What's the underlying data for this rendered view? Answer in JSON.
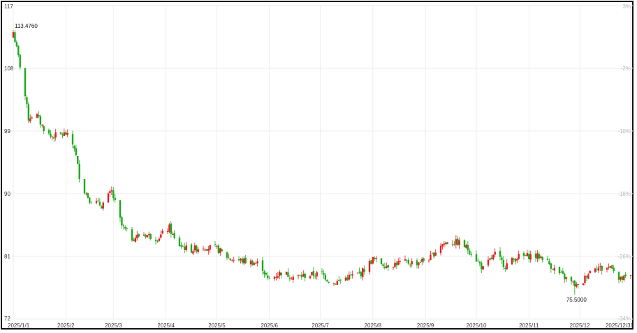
{
  "chart_data": {
    "type": "candlestick",
    "y_left_ticks": [
      "117",
      "108",
      "99",
      "90",
      "81",
      "72"
    ],
    "y_left_values": [
      117,
      108,
      99,
      90,
      81,
      72
    ],
    "ylim": [
      72,
      117
    ],
    "y_right_ticks": [
      "3%",
      "-2%",
      "-10%",
      "-18%",
      "-26%",
      "-34%"
    ],
    "x_ticks": [
      "2025/1/1",
      "2025/2",
      "2025/3",
      "2025/4",
      "2025/5",
      "2025/6",
      "2025/7",
      "2025/8",
      "2025/9",
      "2025/10",
      "2025/11",
      "2025/12",
      "2025/12/31"
    ],
    "x_tick_days": [
      0,
      31,
      59,
      90,
      120,
      151,
      181,
      212,
      243,
      273,
      304,
      334,
      364
    ],
    "high_label": "113.4760",
    "low_label": "75.5000",
    "colors": {
      "up": "#e02020",
      "down": "#1aaa1a",
      "grid": "#eeeeee"
    },
    "price_path_anchors": [
      [
        0,
        113.2
      ],
      [
        5,
        107.2
      ],
      [
        9,
        100.8
      ],
      [
        13,
        101.6
      ],
      [
        17,
        99.7
      ],
      [
        22,
        98.2
      ],
      [
        31,
        98.6
      ],
      [
        36,
        96.7
      ],
      [
        40,
        91.2
      ],
      [
        45,
        89.2
      ],
      [
        52,
        88.3
      ],
      [
        58,
        90.3
      ],
      [
        64,
        85.4
      ],
      [
        70,
        83.6
      ],
      [
        77,
        84.2
      ],
      [
        85,
        83.6
      ],
      [
        92,
        85.1
      ],
      [
        96,
        82.9
      ],
      [
        104,
        81.9
      ],
      [
        112,
        82.4
      ],
      [
        120,
        82.1
      ],
      [
        128,
        80.6
      ],
      [
        137,
        80.3
      ],
      [
        146,
        79.9
      ],
      [
        150,
        77.6
      ],
      [
        158,
        78.7
      ],
      [
        166,
        78.0
      ],
      [
        174,
        78.3
      ],
      [
        182,
        78.5
      ],
      [
        188,
        77.1
      ],
      [
        196,
        77.9
      ],
      [
        205,
        78.6
      ],
      [
        212,
        80.6
      ],
      [
        220,
        79.7
      ],
      [
        228,
        80.1
      ],
      [
        238,
        80.1
      ],
      [
        246,
        80.8
      ],
      [
        252,
        82.7
      ],
      [
        257,
        83.1
      ],
      [
        264,
        82.9
      ],
      [
        270,
        81.6
      ],
      [
        277,
        79.2
      ],
      [
        284,
        81.3
      ],
      [
        290,
        79.7
      ],
      [
        297,
        80.9
      ],
      [
        305,
        81.1
      ],
      [
        312,
        80.9
      ],
      [
        320,
        78.9
      ],
      [
        327,
        77.6
      ],
      [
        334,
        76.4
      ],
      [
        338,
        78.4
      ],
      [
        343,
        79.6
      ],
      [
        348,
        79.1
      ],
      [
        353,
        79.7
      ],
      [
        357,
        77.6
      ],
      [
        364,
        78.1
      ]
    ]
  }
}
